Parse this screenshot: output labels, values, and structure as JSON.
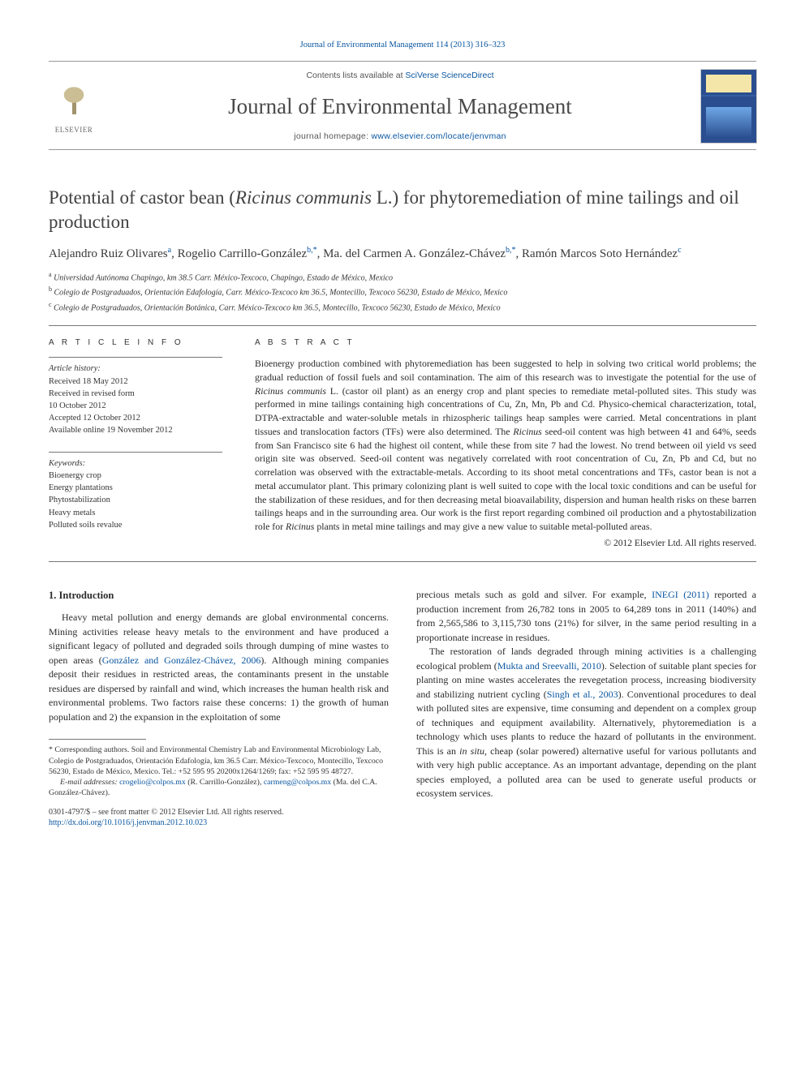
{
  "citation": "Journal of Environmental Management 114 (2013) 316–323",
  "header": {
    "elsevier_label": "ELSEVIER",
    "avail_prefix": "Contents lists available at ",
    "avail_link_text": "SciVerse ScienceDirect",
    "journal_name": "Journal of Environmental Management",
    "homepage_prefix": "journal homepage: ",
    "homepage_link": "www.elsevier.com/locate/jenvman"
  },
  "title": {
    "pre": "Potential of castor bean (",
    "ital": "Ricinus communis",
    "post": " L.) for phytoremediation of mine tailings and oil production"
  },
  "authors": [
    {
      "name": "Alejandro Ruiz Olivares",
      "sup": "a"
    },
    {
      "name": "Rogelio Carrillo-González",
      "sup": "b,*"
    },
    {
      "name": "Ma. del Carmen A. González-Chávez",
      "sup": "b,*"
    },
    {
      "name": "Ramón Marcos Soto Hernández",
      "sup": "c"
    }
  ],
  "affiliations": [
    {
      "sup": "a",
      "text": "Universidad Autónoma Chapingo, km 38.5 Carr. México-Texcoco, Chapingo, Estado de México, Mexico"
    },
    {
      "sup": "b",
      "text": "Colegio de Postgraduados, Orientación Edafología, Carr. México-Texcoco km 36.5, Montecillo, Texcoco 56230, Estado de México, Mexico"
    },
    {
      "sup": "c",
      "text": "Colegio de Postgraduados, Orientación Botánica, Carr. México-Texcoco km 36.5, Montecillo, Texcoco 56230, Estado de México, Mexico"
    }
  ],
  "article_info": {
    "heading": "A R T I C L E   I N F O",
    "history_label": "Article history:",
    "history": [
      "Received 18 May 2012",
      "Received in revised form",
      "10 October 2012",
      "Accepted 12 October 2012",
      "Available online 19 November 2012"
    ],
    "keywords_label": "Keywords:",
    "keywords": [
      "Bioenergy crop",
      "Energy plantations",
      "Phytostabilization",
      "Heavy metals",
      "Polluted soils revalue"
    ]
  },
  "abstract": {
    "heading": "A B S T R A C T",
    "text_pre": "Bioenergy production combined with phytoremediation has been suggested to help in solving two critical world problems; the gradual reduction of fossil fuels and soil contamination. The aim of this research was to investigate the potential for the use of ",
    "ital1": "Ricinus communis",
    "text_mid1": " L. (castor oil plant) as an energy crop and plant species to remediate metal-polluted sites. This study was performed in mine tailings containing high concentrations of Cu, Zn, Mn, Pb and Cd. Physico-chemical characterization, total, DTPA-extractable and water-soluble metals in rhizospheric tailings heap samples were carried. Metal concentrations in plant tissues and translocation factors (TFs) were also determined. The ",
    "ital2": "Ricinus",
    "text_mid2": " seed-oil content was high between 41 and 64%, seeds from San Francisco site 6 had the highest oil content, while these from site 7 had the lowest. No trend between oil yield vs seed origin site was observed. Seed-oil content was negatively correlated with root concentration of Cu, Zn, Pb and Cd, but no correlation was observed with the extractable-metals. According to its shoot metal concentrations and TFs, castor bean is not a metal accumulator plant. This primary colonizing plant is well suited to cope with the local toxic conditions and can be useful for the stabilization of these residues, and for then decreasing metal bioavailability, dispersion and human health risks on these barren tailings heaps and in the surrounding area. Our work is the first report regarding combined oil production and a phytostabilization role for ",
    "ital3": "Ricinus",
    "text_post": " plants in metal mine tailings and may give a new value to suitable metal-polluted areas.",
    "copyright": "© 2012 Elsevier Ltd. All rights reserved."
  },
  "body": {
    "section_heading": "1. Introduction",
    "left": {
      "p1_pre": "Heavy metal pollution and energy demands are global environmental concerns. Mining activities release heavy metals to the environment and have produced a significant legacy of polluted and degraded soils through dumping of mine wastes to open areas (",
      "p1_cite": "González and González-Chávez, 2006",
      "p1_post": "). Although mining companies deposit their residues in restricted areas, the contaminants present in the unstable residues are dispersed by rainfall and wind, which increases the human health risk and environmental problems. Two factors raise these concerns: 1) the growth of human population and 2) the expansion in the exploitation of some"
    },
    "right": {
      "p1_pre": "precious metals such as gold and silver. For example, ",
      "p1_cite": "INEGI (2011)",
      "p1_post": " reported a production increment from 26,782 tons in 2005 to 64,289 tons in 2011 (140%) and from 2,565,586 to 3,115,730 tons (21%) for silver, in the same period resulting in a proportionate increase in residues.",
      "p2_pre": "The restoration of lands degraded through mining activities is a challenging ecological problem (",
      "p2_cite1": "Mukta and Sreevalli, 2010",
      "p2_mid": "). Selection of suitable plant species for planting on mine wastes accelerates the revegetation process, increasing biodiversity and stabilizing nutrient cycling (",
      "p2_cite2": "Singh et al., 2003",
      "p2_post_pre": "). Conventional procedures to deal with polluted sites are expensive, time consuming and dependent on a complex group of techniques and equipment availability. Alternatively, phytoremediation is a technology which uses plants to reduce the hazard of pollutants in the environment. This is an ",
      "p2_ital": "in situ",
      "p2_post_post": ", cheap (solar powered) alternative useful for various pollutants and with very high public acceptance. As an important advantage, depending on the plant species employed, a polluted area can be used to generate useful products or ecosystem services."
    }
  },
  "footnote": {
    "corr": "* Corresponding authors. Soil and Environmental Chemistry Lab and Environmental Microbiology Lab, Colegio de Postgraduados, Orientación Edafología, km 36.5 Carr. México-Texcoco, Montecillo, Texcoco 56230, Estado de México, Mexico. Tel.: +52 595 95 20200x1264/1269; fax: +52 595 95 48727.",
    "email_label": "E-mail addresses:",
    "email1": "crogelio@colpos.mx",
    "email1_name": "(R. Carrillo-González),",
    "email2": "carmeng@colpos.mx",
    "email2_name": "(Ma. del C.A. González-Chávez)."
  },
  "copyright_block": {
    "line1": "0301-4797/$ – see front matter © 2012 Elsevier Ltd. All rights reserved.",
    "doi": "http://dx.doi.org/10.1016/j.jenvman.2012.10.023"
  },
  "colors": {
    "link": "#0a56a0",
    "text": "#2a2a2a"
  }
}
